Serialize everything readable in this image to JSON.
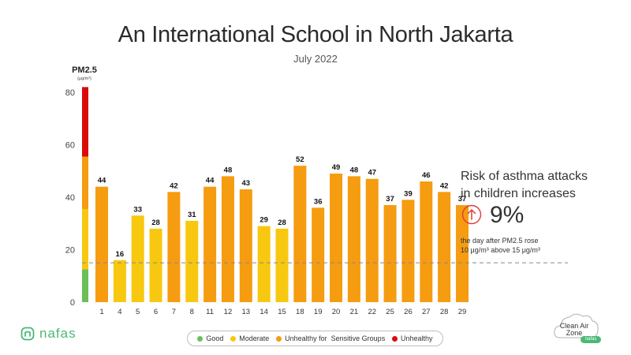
{
  "title": "An International School in North Jakarta",
  "subtitle": "July 2022",
  "chart_data": {
    "type": "bar",
    "ylabel": "PM2.5",
    "yunit": "(μg/m³)",
    "ylim": [
      0,
      82
    ],
    "yticks": [
      0,
      20,
      40,
      60,
      80
    ],
    "categories": [
      "1",
      "4",
      "5",
      "6",
      "7",
      "8",
      "11",
      "12",
      "13",
      "14",
      "15",
      "18",
      "19",
      "20",
      "21",
      "22",
      "25",
      "26",
      "27",
      "28",
      "29"
    ],
    "values": [
      44,
      16,
      33,
      28,
      42,
      31,
      44,
      48,
      43,
      29,
      28,
      52,
      36,
      49,
      48,
      47,
      37,
      39,
      46,
      42,
      37
    ],
    "reference_line": 15,
    "aqi_bands": [
      {
        "name": "Good",
        "from": 0,
        "to": 12.5,
        "color": "#6bbf59"
      },
      {
        "name": "Moderate",
        "from": 12.5,
        "to": 35.5,
        "color": "#f7c80f"
      },
      {
        "name": "Unhealthy for Sensitive Groups",
        "from": 35.5,
        "to": 55.5,
        "color": "#f59c10"
      },
      {
        "name": "Unhealthy",
        "from": 55.5,
        "to": 82,
        "color": "#d90c0c"
      }
    ],
    "grid": false,
    "legend_position": "bottom-center"
  },
  "callout": {
    "heading_line1": "Risk of asthma attacks",
    "heading_line2": "in children increases",
    "percent": "9%",
    "note_line1": "the day after PM2.5 rose",
    "note_line2": "10 μg/m³ above 15 μg/m³"
  },
  "legend": [
    {
      "label": "Good",
      "color": "#6bbf59"
    },
    {
      "label": "Moderate",
      "color": "#f7c80f"
    },
    {
      "label": "Unhealthy for  Sensitive Groups",
      "color": "#f59c10"
    },
    {
      "label": "Unhealthy",
      "color": "#d90c0c"
    }
  ],
  "logos": {
    "left": "nafas",
    "right_line1": "Clean Air",
    "right_line2": "Zone",
    "right_badge": "nafas"
  },
  "colors": {
    "arrow_circle": "#e23b3b",
    "logo_green": "#4bb877",
    "reference_line": "#888888"
  }
}
